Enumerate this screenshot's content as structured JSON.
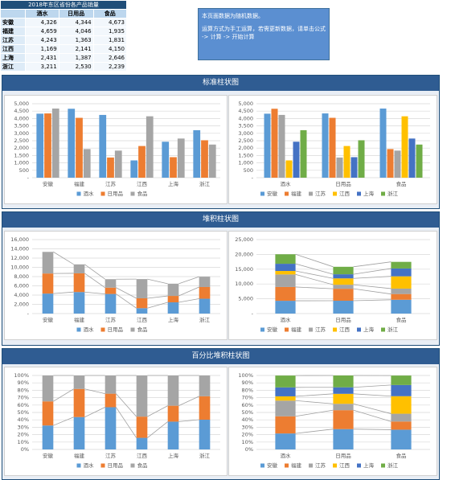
{
  "table": {
    "title": "2018年东区省份各产品销量",
    "header": [
      "酒水",
      "日用品",
      "食品"
    ],
    "rows": [
      {
        "label": "安徽",
        "cells": [
          "4,326",
          "4,344",
          "4,673"
        ]
      },
      {
        "label": "福建",
        "cells": [
          "4,659",
          "4,046",
          "1,935"
        ]
      },
      {
        "label": "江苏",
        "cells": [
          "4,243",
          "1,363",
          "1,831"
        ]
      },
      {
        "label": "江西",
        "cells": [
          "1,169",
          "2,141",
          "4,150"
        ]
      },
      {
        "label": "上海",
        "cells": [
          "2,431",
          "1,387",
          "2,646"
        ]
      },
      {
        "label": "浙江",
        "cells": [
          "3,211",
          "2,530",
          "2,239"
        ]
      }
    ]
  },
  "note": {
    "lines": [
      "本页面数据为随机数据。",
      "运算方式为手工运算，若需更新数据，请单击公式 -> 计算 -> 开始计算"
    ]
  },
  "sections": [
    "标准柱状图",
    "堆积柱状图",
    "百分比堆积柱状图"
  ],
  "chart_data": [
    {
      "type": "bar",
      "stacked": false,
      "grid": true,
      "legend": "bottom",
      "categories": [
        "安徽",
        "福建",
        "江苏",
        "江西",
        "上海",
        "浙江"
      ],
      "series": [
        {
          "name": "酒水",
          "color": "#5b9bd5",
          "values": [
            4326,
            4659,
            4243,
            1169,
            2431,
            3211
          ]
        },
        {
          "name": "日用品",
          "color": "#ed7d31",
          "values": [
            4344,
            4046,
            1363,
            2141,
            1387,
            2530
          ]
        },
        {
          "name": "食品",
          "color": "#a5a5a5",
          "values": [
            4673,
            1935,
            1831,
            4150,
            2646,
            2239
          ]
        }
      ],
      "ylim": [
        0,
        5000
      ],
      "yticks": [
        {
          "value": 0,
          "label": "-"
        },
        500,
        {
          "value": 1000,
          "label": "1,000"
        },
        {
          "value": 1500,
          "label": "1,500"
        },
        {
          "value": 2000,
          "label": "2,000"
        },
        {
          "value": 2500,
          "label": "2,500"
        },
        {
          "value": 3000,
          "label": "3,000"
        },
        {
          "value": 3500,
          "label": "3,500"
        },
        {
          "value": 4000,
          "label": "4,000"
        },
        {
          "value": 4500,
          "label": "4,500"
        },
        {
          "value": 5000,
          "label": "5,000"
        }
      ]
    },
    {
      "type": "bar",
      "stacked": false,
      "grid": true,
      "legend": "bottom",
      "categories": [
        "酒水",
        "日用品",
        "食品"
      ],
      "series": [
        {
          "name": "安徽",
          "color": "#5b9bd5",
          "values": [
            4326,
            4344,
            4673
          ]
        },
        {
          "name": "福建",
          "color": "#ed7d31",
          "values": [
            4659,
            4046,
            1935
          ]
        },
        {
          "name": "江苏",
          "color": "#a5a5a5",
          "values": [
            4243,
            1363,
            1831
          ]
        },
        {
          "name": "江西",
          "color": "#ffc000",
          "values": [
            1169,
            2141,
            4150
          ]
        },
        {
          "name": "上海",
          "color": "#4472c4",
          "values": [
            2431,
            1387,
            2646
          ]
        },
        {
          "name": "浙江",
          "color": "#70ad47",
          "values": [
            3211,
            2530,
            2239
          ]
        }
      ],
      "ylim": [
        0,
        5000
      ],
      "yticks": [
        {
          "value": 0,
          "label": "-"
        },
        500,
        {
          "value": 1000,
          "label": "1,000"
        },
        {
          "value": 1500,
          "label": "1,500"
        },
        {
          "value": 2000,
          "label": "2,000"
        },
        {
          "value": 2500,
          "label": "2,500"
        },
        {
          "value": 3000,
          "label": "3,000"
        },
        {
          "value": 3500,
          "label": "3,500"
        },
        {
          "value": 4000,
          "label": "4,000"
        },
        {
          "value": 4500,
          "label": "4,500"
        },
        {
          "value": 5000,
          "label": "5,000"
        }
      ]
    },
    {
      "type": "bar",
      "stacked": true,
      "grid": true,
      "legend": "bottom",
      "categories": [
        "安徽",
        "福建",
        "江苏",
        "江西",
        "上海",
        "浙江"
      ],
      "series": [
        {
          "name": "酒水",
          "color": "#5b9bd5",
          "values": [
            4326,
            4659,
            4243,
            1169,
            2431,
            3211
          ]
        },
        {
          "name": "日用品",
          "color": "#ed7d31",
          "values": [
            4344,
            4046,
            1363,
            2141,
            1387,
            2530
          ]
        },
        {
          "name": "食品",
          "color": "#a5a5a5",
          "values": [
            4673,
            1935,
            1831,
            4150,
            2646,
            2239
          ]
        }
      ],
      "ylim": [
        0,
        16000
      ],
      "yticks": [
        {
          "value": 0,
          "label": "-"
        },
        {
          "value": 2000,
          "label": "2,000"
        },
        {
          "value": 4000,
          "label": "4,000"
        },
        {
          "value": 6000,
          "label": "6,000"
        },
        {
          "value": 8000,
          "label": "8,000"
        },
        {
          "value": 10000,
          "label": "10,000"
        },
        {
          "value": 12000,
          "label": "12,000"
        },
        {
          "value": 14000,
          "label": "14,000"
        },
        {
          "value": 16000,
          "label": "16,000"
        }
      ]
    },
    {
      "type": "bar",
      "stacked": true,
      "grid": true,
      "legend": "bottom",
      "categories": [
        "酒水",
        "日用品",
        "食品"
      ],
      "series": [
        {
          "name": "安徽",
          "color": "#5b9bd5",
          "values": [
            4326,
            4344,
            4673
          ]
        },
        {
          "name": "福建",
          "color": "#ed7d31",
          "values": [
            4659,
            4046,
            1935
          ]
        },
        {
          "name": "江苏",
          "color": "#a5a5a5",
          "values": [
            4243,
            1363,
            1831
          ]
        },
        {
          "name": "江西",
          "color": "#ffc000",
          "values": [
            1169,
            2141,
            4150
          ]
        },
        {
          "name": "上海",
          "color": "#4472c4",
          "values": [
            2431,
            1387,
            2646
          ]
        },
        {
          "name": "浙江",
          "color": "#70ad47",
          "values": [
            3211,
            2530,
            2239
          ]
        }
      ],
      "ylim": [
        0,
        25000
      ],
      "yticks": [
        {
          "value": 0,
          "label": "-"
        },
        {
          "value": 5000,
          "label": "5,000"
        },
        {
          "value": 10000,
          "label": "10,000"
        },
        {
          "value": 15000,
          "label": "15,000"
        },
        {
          "value": 20000,
          "label": "20,000"
        },
        {
          "value": 25000,
          "label": "25,000"
        }
      ]
    },
    {
      "type": "bar",
      "stacked": true,
      "grid": true,
      "legend": "bottom",
      "categories": [
        "安徽",
        "福建",
        "江苏",
        "江西",
        "上海",
        "浙江"
      ],
      "series": [
        {
          "name": "酒水",
          "color": "#5b9bd5",
          "values": [
            32.4,
            43.8,
            57.1,
            15.7,
            37.6,
            40.2
          ]
        },
        {
          "name": "日用品",
          "color": "#ed7d31",
          "values": [
            32.6,
            38.0,
            18.3,
            28.7,
            21.5,
            31.7
          ]
        },
        {
          "name": "食品",
          "color": "#a5a5a5",
          "values": [
            35.0,
            18.2,
            24.6,
            55.6,
            40.9,
            28.1
          ]
        }
      ],
      "ylim": [
        0,
        100
      ],
      "yticks": [
        {
          "value": 0,
          "label": "0%"
        },
        {
          "value": 10,
          "label": "10%"
        },
        {
          "value": 20,
          "label": "20%"
        },
        {
          "value": 30,
          "label": "30%"
        },
        {
          "value": 40,
          "label": "40%"
        },
        {
          "value": 50,
          "label": "50%"
        },
        {
          "value": 60,
          "label": "60%"
        },
        {
          "value": 70,
          "label": "70%"
        },
        {
          "value": 80,
          "label": "80%"
        },
        {
          "value": 90,
          "label": "90%"
        },
        {
          "value": 100,
          "label": "100%"
        }
      ]
    },
    {
      "type": "bar",
      "stacked": true,
      "grid": true,
      "legend": "bottom",
      "categories": [
        "酒水",
        "日用品",
        "食品"
      ],
      "series": [
        {
          "name": "安徽",
          "color": "#5b9bd5",
          "values": [
            21.6,
            27.5,
            26.7
          ]
        },
        {
          "name": "福建",
          "color": "#ed7d31",
          "values": [
            23.2,
            25.6,
            11.1
          ]
        },
        {
          "name": "江苏",
          "color": "#a5a5a5",
          "values": [
            21.2,
            8.6,
            10.5
          ]
        },
        {
          "name": "江西",
          "color": "#ffc000",
          "values": [
            5.8,
            13.5,
            23.7
          ]
        },
        {
          "name": "上海",
          "color": "#4472c4",
          "values": [
            12.1,
            8.8,
            15.1
          ]
        },
        {
          "name": "浙江",
          "color": "#70ad47",
          "values": [
            16.0,
            16.0,
            12.8
          ]
        }
      ],
      "ylim": [
        0,
        100
      ],
      "yticks": [
        {
          "value": 0,
          "label": "0%"
        },
        {
          "value": 10,
          "label": "10%"
        },
        {
          "value": 20,
          "label": "20%"
        },
        {
          "value": 30,
          "label": "30%"
        },
        {
          "value": 40,
          "label": "40%"
        },
        {
          "value": 50,
          "label": "50%"
        },
        {
          "value": 60,
          "label": "60%"
        },
        {
          "value": 70,
          "label": "70%"
        },
        {
          "value": 80,
          "label": "80%"
        },
        {
          "value": 90,
          "label": "90%"
        },
        {
          "value": 100,
          "label": "100%"
        }
      ]
    }
  ]
}
